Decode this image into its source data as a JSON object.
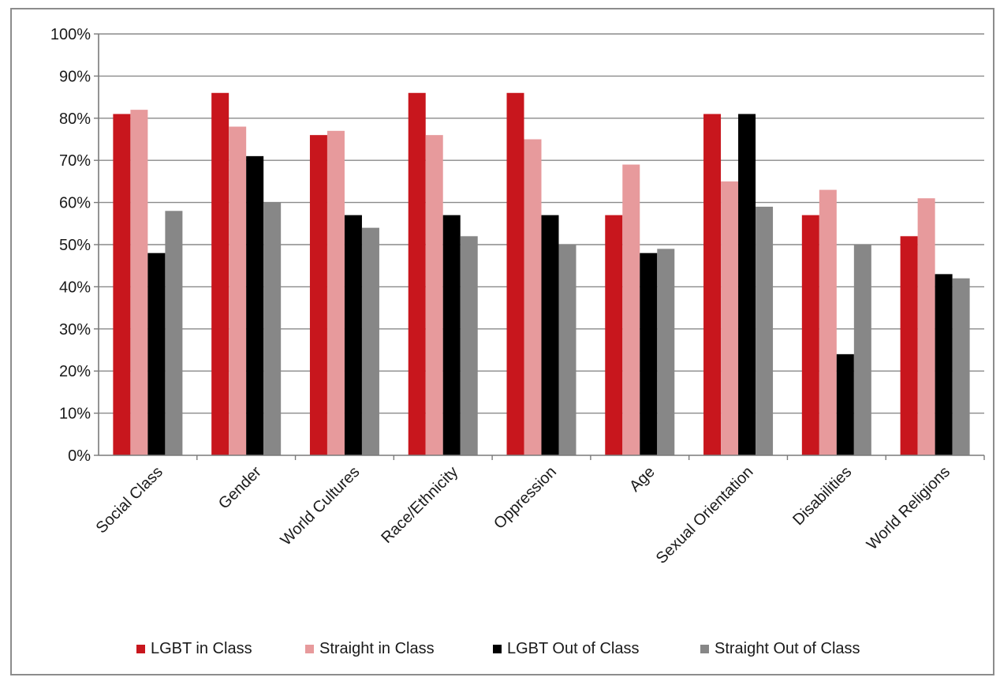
{
  "chart_data": {
    "type": "bar",
    "title": "",
    "xlabel": "",
    "ylabel": "",
    "categories": [
      "Social Class",
      "Gender",
      "World Cultures",
      "Race/Ethnicity",
      "Oppression",
      "Age",
      "Sexual Orientation",
      "Disabilities",
      "World Religions"
    ],
    "series": [
      {
        "name": "LGBT in Class",
        "color": "#c8161d",
        "values": [
          81,
          86,
          76,
          86,
          86,
          57,
          81,
          57,
          52
        ]
      },
      {
        "name": "Straight in Class",
        "color": "#e79a9c",
        "values": [
          82,
          78,
          77,
          76,
          75,
          69,
          65,
          63,
          61
        ]
      },
      {
        "name": "LGBT Out of Class",
        "color": "#000000",
        "values": [
          48,
          71,
          57,
          57,
          57,
          48,
          81,
          24,
          43
        ]
      },
      {
        "name": "Straight Out of Class",
        "color": "#878787",
        "values": [
          58,
          60,
          54,
          52,
          50,
          49,
          59,
          50,
          42
        ]
      }
    ],
    "ylim": [
      0,
      100
    ],
    "yticks": [
      "0%",
      "10%",
      "20%",
      "30%",
      "40%",
      "50%",
      "60%",
      "70%",
      "80%",
      "90%",
      "100%"
    ],
    "grid": true,
    "legend_position": "bottom"
  }
}
